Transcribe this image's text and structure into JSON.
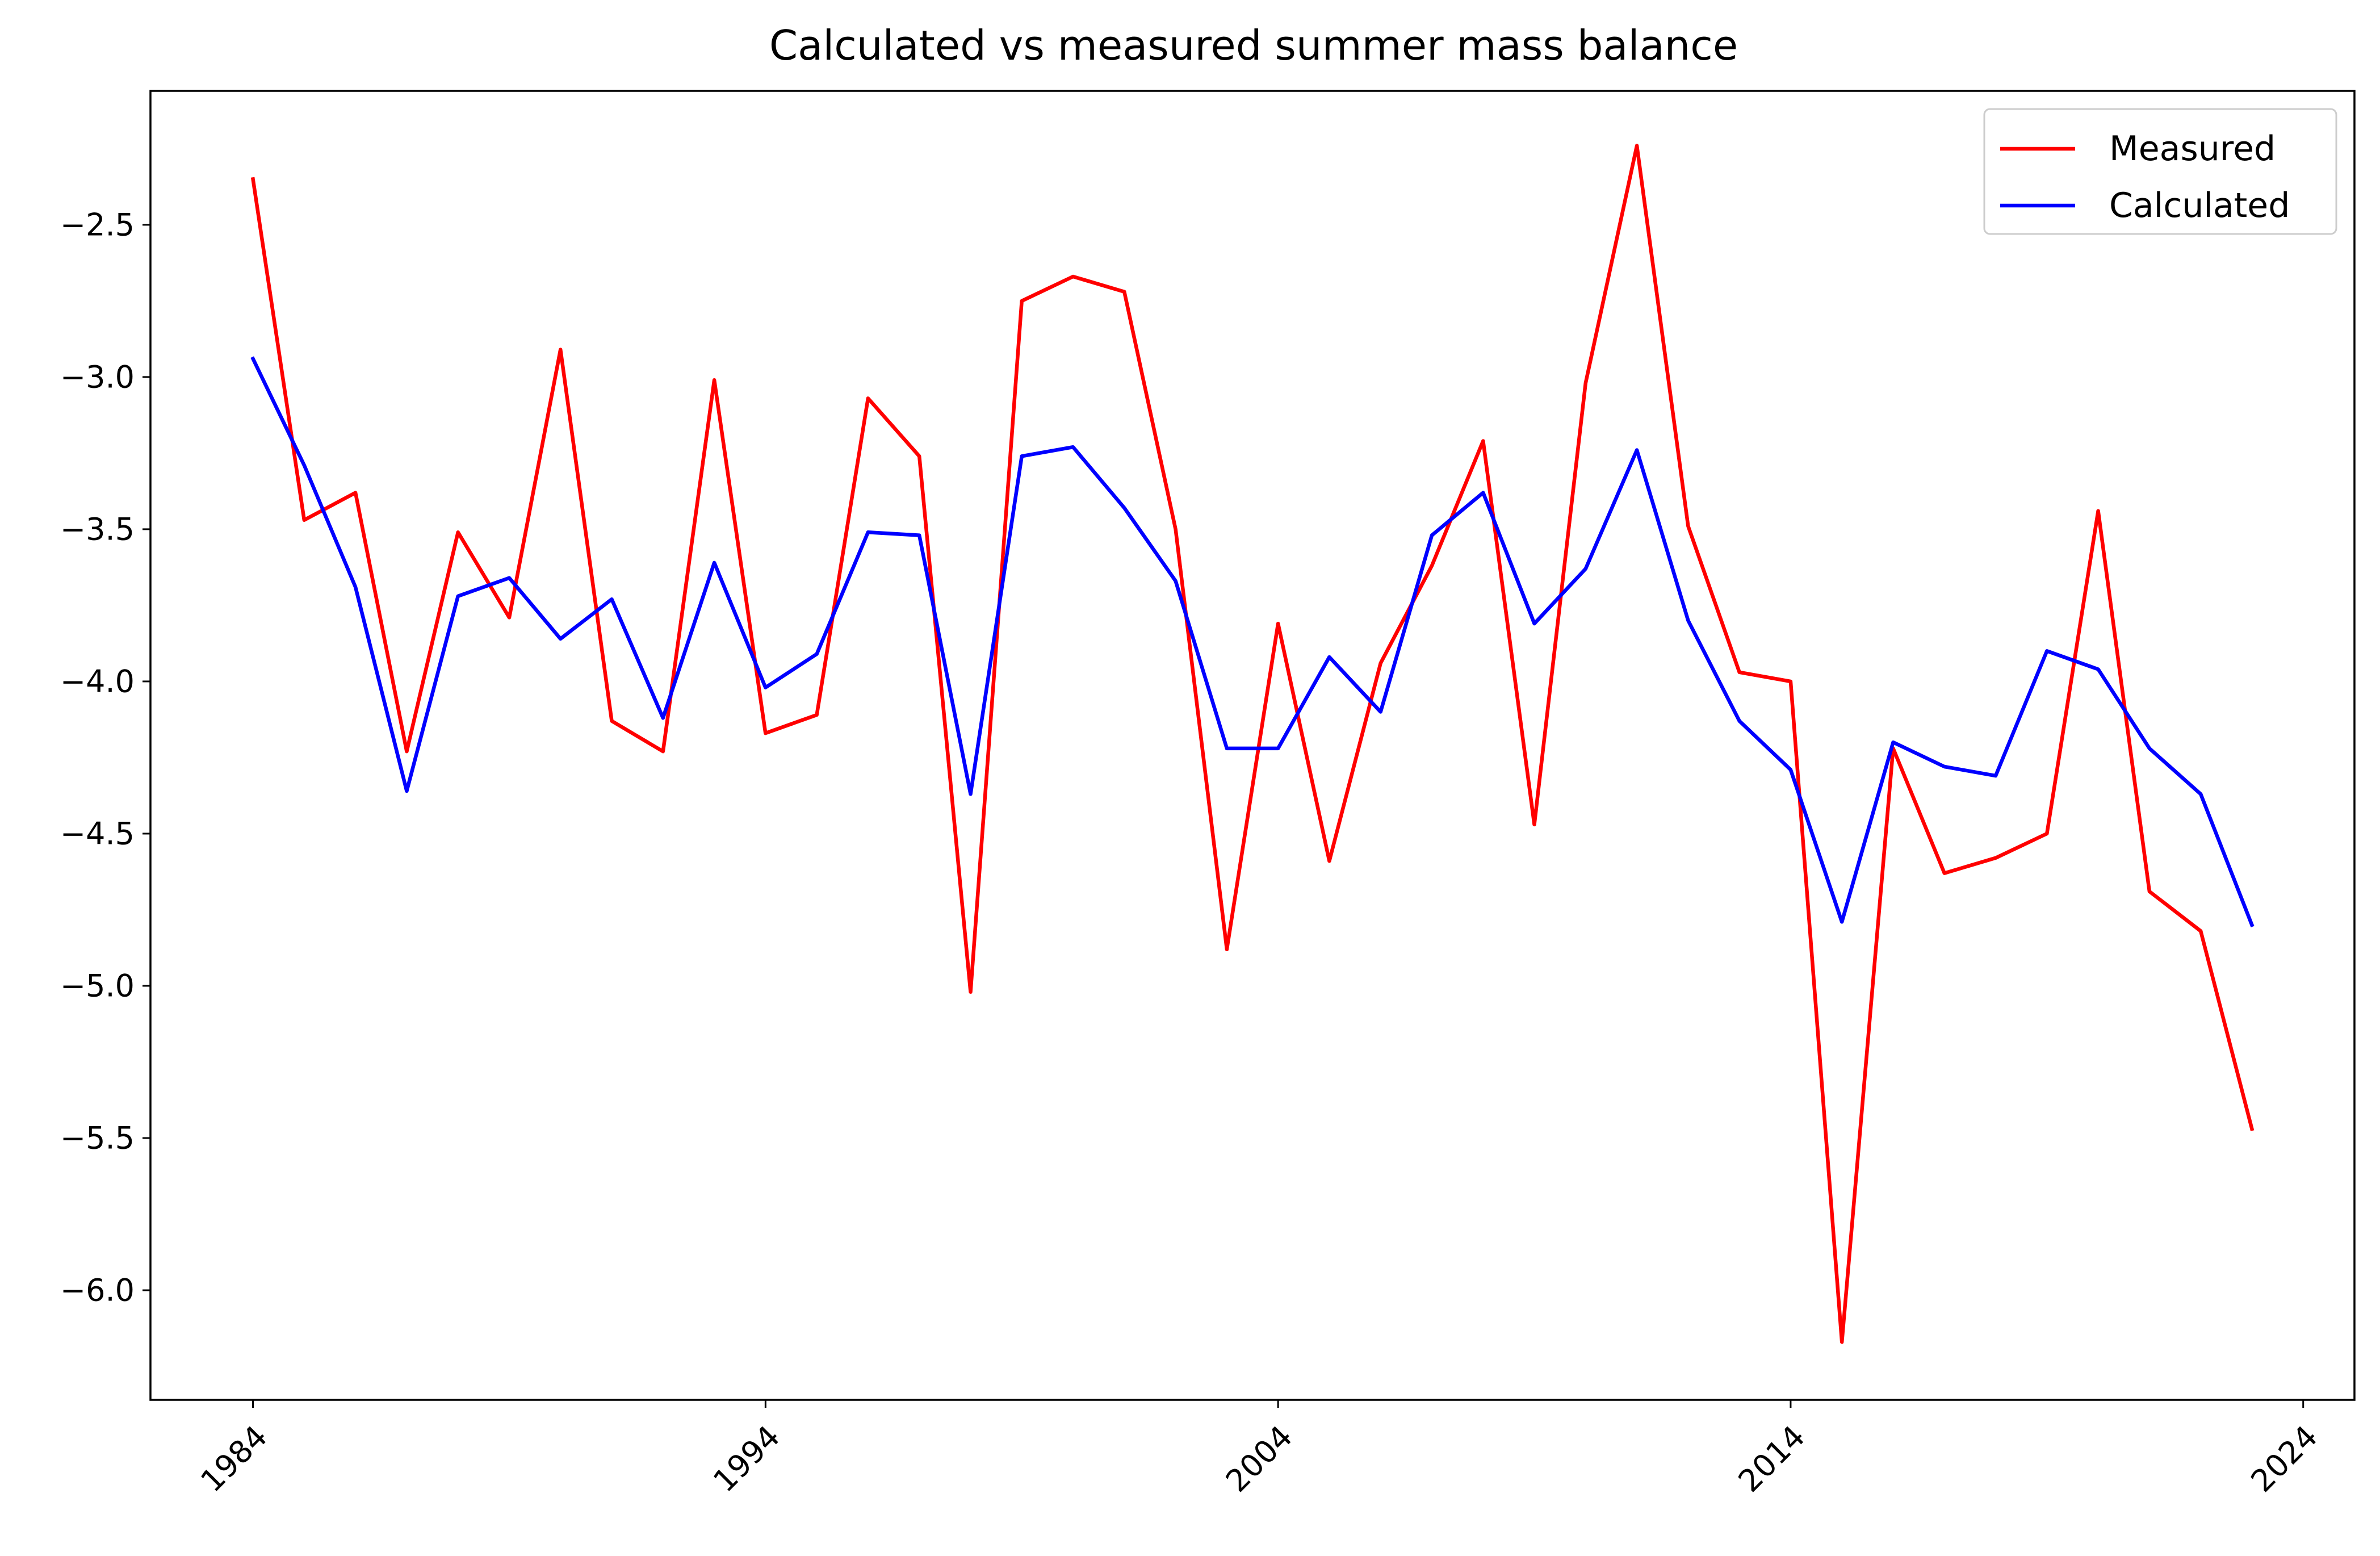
{
  "chart_data": {
    "type": "line",
    "title": "Calculated vs measured summer mass balance",
    "xlabel": "",
    "ylabel": "",
    "x": [
      1984,
      1985,
      1986,
      1987,
      1988,
      1989,
      1990,
      1991,
      1992,
      1993,
      1994,
      1995,
      1996,
      1997,
      1998,
      1999,
      2000,
      2001,
      2002,
      2003,
      2004,
      2005,
      2006,
      2007,
      2008,
      2009,
      2010,
      2011,
      2012,
      2013,
      2014,
      2015,
      2016,
      2017,
      2018,
      2019,
      2020,
      2021,
      2022,
      2023
    ],
    "series": [
      {
        "name": "Measured",
        "color": "#ff0000",
        "values": [
          -2.35,
          -3.47,
          -3.38,
          -4.23,
          -3.51,
          -3.79,
          -2.91,
          -4.13,
          -4.23,
          -3.01,
          -4.17,
          -4.11,
          -3.07,
          -3.26,
          -5.02,
          -2.75,
          -2.67,
          -2.72,
          -3.5,
          -4.88,
          -3.81,
          -4.59,
          -3.94,
          -3.62,
          -3.21,
          -4.47,
          -3.02,
          -2.24,
          -3.49,
          -3.97,
          -4.0,
          -6.17,
          -4.22,
          -4.63,
          -4.58,
          -4.5,
          -3.44,
          -4.69,
          -4.82,
          -5.47
        ]
      },
      {
        "name": "Calculated",
        "color": "#0000ff",
        "values": [
          -2.94,
          -3.29,
          -3.69,
          -4.36,
          -3.72,
          -3.66,
          -3.86,
          -3.73,
          -4.12,
          -3.61,
          -4.02,
          -3.91,
          -3.51,
          -3.52,
          -4.37,
          -3.26,
          -3.23,
          -3.43,
          -3.67,
          -4.22,
          -4.22,
          -3.92,
          -4.1,
          -3.52,
          -3.38,
          -3.81,
          -3.63,
          -3.24,
          -3.8,
          -4.13,
          -4.29,
          -4.79,
          -4.2,
          -4.28,
          -4.31,
          -3.9,
          -3.96,
          -4.22,
          -4.37,
          -4.8
        ]
      }
    ],
    "xlim": [
      1982,
      2025
    ],
    "ylim": [
      -6.36,
      -2.06
    ],
    "xticks": [
      1984,
      1994,
      2004,
      2014,
      2024
    ],
    "xtick_labels": [
      "1984",
      "1994",
      "2004",
      "2014",
      "2024"
    ],
    "yticks": [
      -2.5,
      -3.0,
      -3.5,
      -4.0,
      -4.5,
      -5.0,
      -5.5,
      -6.0
    ],
    "ytick_labels": [
      "−2.5",
      "−3.0",
      "−3.5",
      "−4.0",
      "−4.5",
      "−5.0",
      "−5.5",
      "−6.0"
    ],
    "grid": false,
    "legend_position": "top-right"
  }
}
